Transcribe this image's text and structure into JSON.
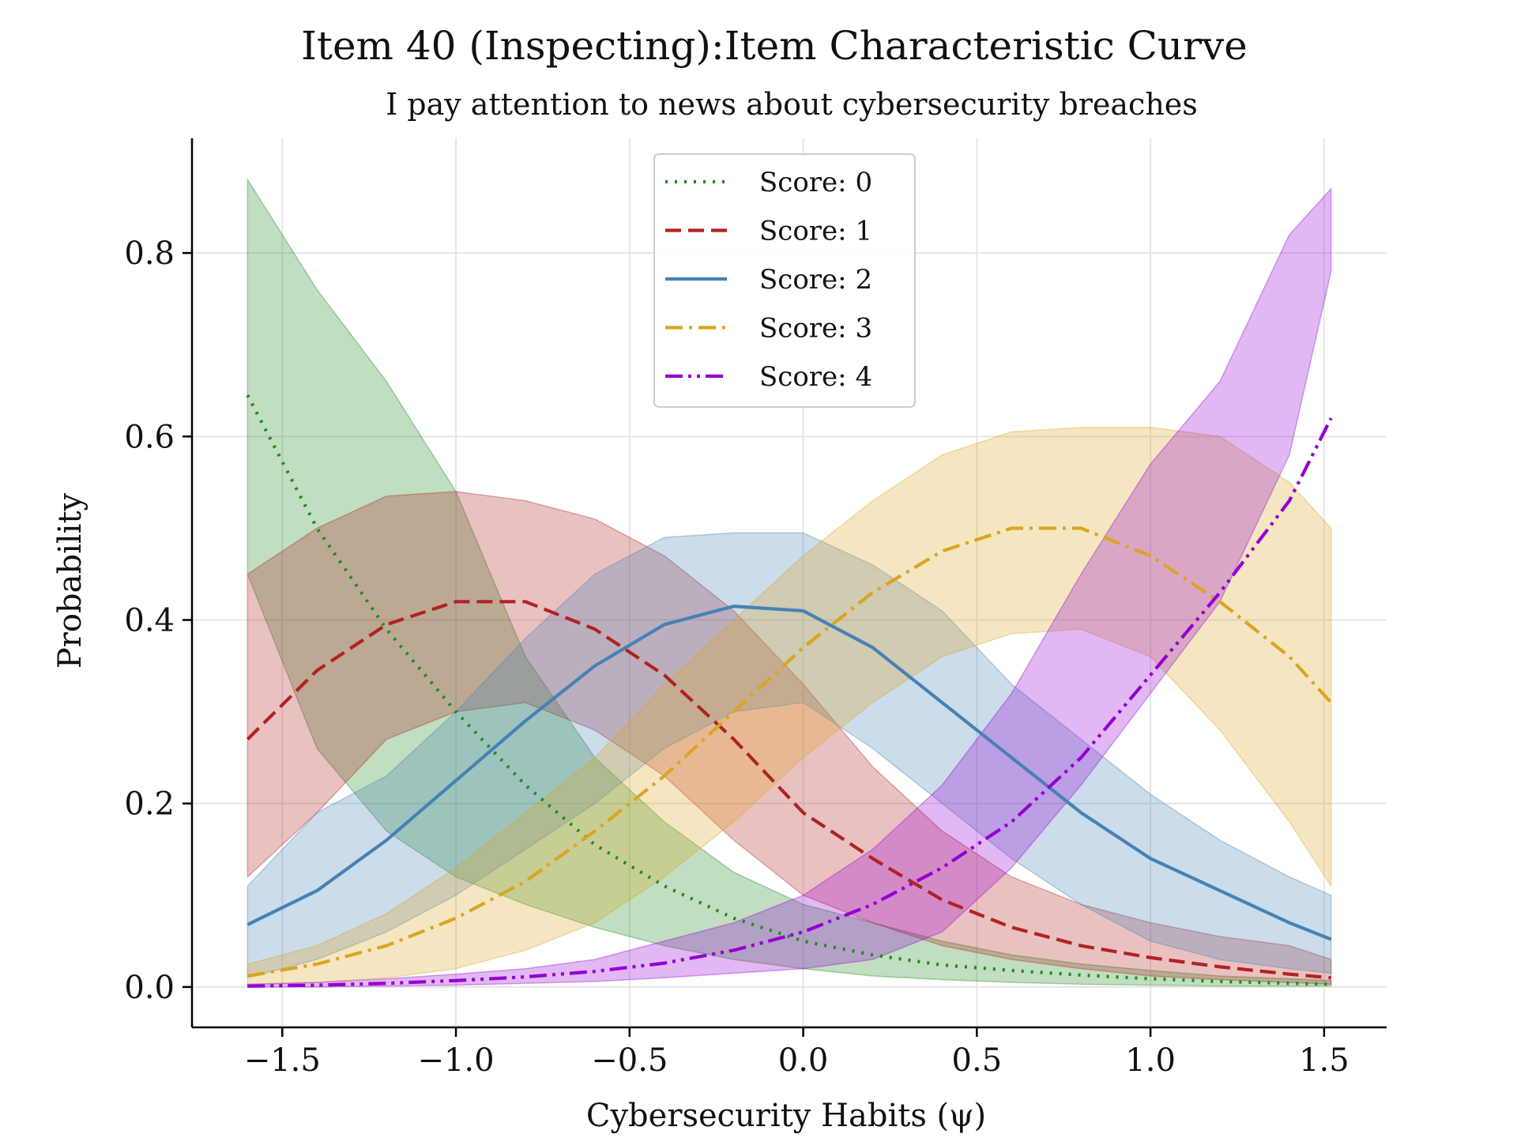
{
  "chart_data": {
    "type": "line",
    "title": "Item 40 (Inspecting):Item Characteristic Curve",
    "subtitle": "I pay attention to news about cybersecurity breaches",
    "xlabel": "Cybersecurity Habits (ψ)",
    "ylabel": "Probability",
    "xlim": [
      -1.76,
      1.68
    ],
    "ylim": [
      -0.044,
      0.925
    ],
    "xticks": [
      -1.5,
      -1.0,
      -0.5,
      0.0,
      0.5,
      1.0,
      1.5
    ],
    "xtick_labels": [
      "−1.5",
      "−1.0",
      "−0.5",
      "0.0",
      "0.5",
      "1.0",
      "1.5"
    ],
    "yticks": [
      0.0,
      0.2,
      0.4,
      0.6,
      0.8
    ],
    "ytick_labels": [
      "0.0",
      "0.2",
      "0.4",
      "0.6",
      "0.8"
    ],
    "grid": true,
    "legend_position": "top-center",
    "x": [
      -1.6,
      -1.4,
      -1.2,
      -1.0,
      -0.8,
      -0.6,
      -0.4,
      -0.2,
      0.0,
      0.2,
      0.4,
      0.6,
      0.8,
      1.0,
      1.2,
      1.4,
      1.52
    ],
    "series": [
      {
        "name": "Score: 0",
        "color": "#1e8a1e",
        "dash": "dotted",
        "values": [
          0.645,
          0.5,
          0.39,
          0.3,
          0.22,
          0.155,
          0.11,
          0.075,
          0.05,
          0.035,
          0.024,
          0.018,
          0.013,
          0.009,
          0.006,
          0.004,
          0.003
        ],
        "lower": [
          0.45,
          0.26,
          0.17,
          0.12,
          0.09,
          0.065,
          0.045,
          0.03,
          0.02,
          0.012,
          0.008,
          0.005,
          0.003,
          0.002,
          0.001,
          0.001,
          0.001
        ],
        "upper": [
          0.88,
          0.76,
          0.66,
          0.54,
          0.36,
          0.25,
          0.18,
          0.125,
          0.09,
          0.07,
          0.05,
          0.035,
          0.025,
          0.018,
          0.012,
          0.009,
          0.007
        ]
      },
      {
        "name": "Score: 1",
        "color": "#b22222",
        "dash": "dashed",
        "values": [
          0.27,
          0.345,
          0.395,
          0.42,
          0.42,
          0.39,
          0.34,
          0.27,
          0.19,
          0.14,
          0.095,
          0.065,
          0.045,
          0.032,
          0.022,
          0.014,
          0.01
        ],
        "lower": [
          0.12,
          0.19,
          0.27,
          0.3,
          0.31,
          0.28,
          0.23,
          0.16,
          0.1,
          0.07,
          0.045,
          0.03,
          0.02,
          0.012,
          0.008,
          0.005,
          0.003
        ],
        "upper": [
          0.45,
          0.5,
          0.535,
          0.54,
          0.53,
          0.51,
          0.47,
          0.41,
          0.33,
          0.24,
          0.17,
          0.12,
          0.09,
          0.07,
          0.055,
          0.045,
          0.03
        ]
      },
      {
        "name": "Score: 2",
        "color": "#4682b4",
        "dash": "solid",
        "values": [
          0.068,
          0.105,
          0.16,
          0.225,
          0.29,
          0.35,
          0.395,
          0.415,
          0.41,
          0.37,
          0.31,
          0.25,
          0.19,
          0.14,
          0.105,
          0.07,
          0.052
        ],
        "lower": [
          0.01,
          0.03,
          0.06,
          0.1,
          0.15,
          0.2,
          0.26,
          0.3,
          0.31,
          0.26,
          0.2,
          0.14,
          0.09,
          0.05,
          0.03,
          0.02,
          0.015
        ],
        "upper": [
          0.11,
          0.19,
          0.23,
          0.3,
          0.38,
          0.45,
          0.49,
          0.495,
          0.495,
          0.46,
          0.41,
          0.33,
          0.27,
          0.21,
          0.16,
          0.12,
          0.1
        ]
      },
      {
        "name": "Score: 3",
        "color": "#daa520",
        "dash": "dashdot",
        "values": [
          0.012,
          0.025,
          0.045,
          0.075,
          0.115,
          0.17,
          0.23,
          0.3,
          0.37,
          0.43,
          0.475,
          0.5,
          0.5,
          0.47,
          0.42,
          0.36,
          0.31
        ],
        "lower": [
          0.002,
          0.005,
          0.01,
          0.02,
          0.04,
          0.07,
          0.12,
          0.18,
          0.25,
          0.31,
          0.36,
          0.385,
          0.39,
          0.36,
          0.28,
          0.18,
          0.11
        ],
        "upper": [
          0.025,
          0.045,
          0.08,
          0.13,
          0.19,
          0.25,
          0.33,
          0.4,
          0.47,
          0.53,
          0.58,
          0.605,
          0.61,
          0.61,
          0.6,
          0.55,
          0.5
        ]
      },
      {
        "name": "Score: 4",
        "color": "#9400d3",
        "dash": "dashdotdot",
        "values": [
          0.001,
          0.002,
          0.004,
          0.007,
          0.011,
          0.017,
          0.026,
          0.04,
          0.06,
          0.09,
          0.13,
          0.18,
          0.25,
          0.34,
          0.43,
          0.53,
          0.62
        ],
        "lower": [
          0.0,
          0.0,
          0.001,
          0.002,
          0.004,
          0.006,
          0.01,
          0.015,
          0.02,
          0.03,
          0.06,
          0.13,
          0.22,
          0.32,
          0.42,
          0.58,
          0.78
        ],
        "upper": [
          0.003,
          0.005,
          0.009,
          0.014,
          0.02,
          0.03,
          0.05,
          0.07,
          0.1,
          0.15,
          0.22,
          0.32,
          0.45,
          0.57,
          0.66,
          0.82,
          0.87
        ]
      }
    ]
  }
}
